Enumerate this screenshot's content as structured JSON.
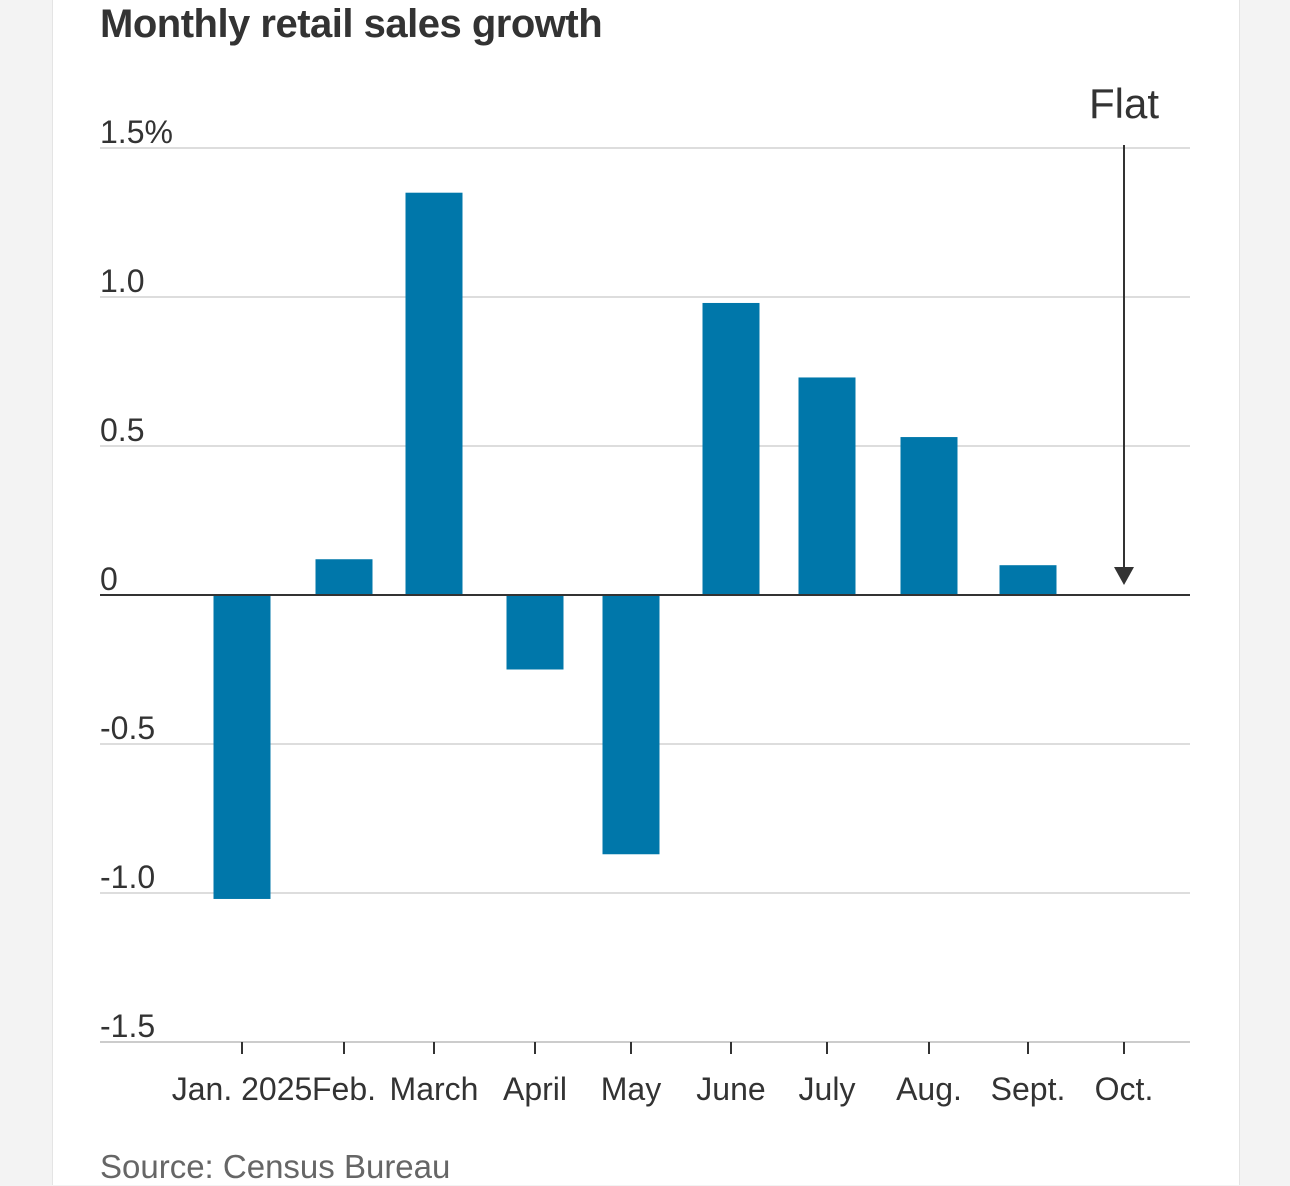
{
  "chart_data": {
    "type": "bar",
    "title": "Monthly retail sales growth",
    "categories": [
      "Jan. 2025",
      "Feb.",
      "March",
      "April",
      "May",
      "June",
      "July",
      "Aug.",
      "Sept.",
      "Oct."
    ],
    "values": [
      -1.02,
      0.12,
      1.35,
      -0.25,
      -0.87,
      0.98,
      0.73,
      0.53,
      0.1,
      0
    ],
    "ylim": [
      -1.5,
      1.5
    ],
    "yticks": [
      {
        "value": 1.5,
        "label": "1.5%"
      },
      {
        "value": 1.0,
        "label": "1.0"
      },
      {
        "value": 0.5,
        "label": "0.5"
      },
      {
        "value": 0,
        "label": "0"
      },
      {
        "value": -0.5,
        "label": "-0.5"
      },
      {
        "value": -1.0,
        "label": "-1.0"
      },
      {
        "value": -1.5,
        "label": "-1.5"
      }
    ],
    "xlabel": "",
    "ylabel": "",
    "grid": true,
    "bar_color": "#0077aa",
    "annotations": [
      {
        "category": "Oct.",
        "text": "Flat"
      }
    ]
  },
  "source": "Source: Census Bureau"
}
